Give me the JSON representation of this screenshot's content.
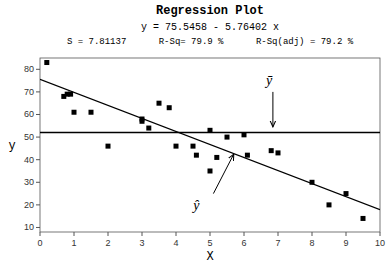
{
  "chart_data": {
    "type": "scatter",
    "title": "Regression Plot",
    "subtitle": [
      "y = 75.5458 - 5.76402 x",
      "S = 7.81137      R-Sq= 79.9 %      R-Sq(adj) = 79.2 %"
    ],
    "xlabel": "X",
    "ylabel": "y",
    "xlim": [
      0,
      10
    ],
    "ylim": [
      8,
      85
    ],
    "xticks": [
      0,
      1,
      2,
      3,
      4,
      5,
      6,
      7,
      8,
      9,
      10
    ],
    "yticks": [
      10,
      20,
      30,
      40,
      50,
      60,
      70,
      80
    ],
    "grid": false,
    "series": [
      {
        "type": "scatter",
        "marker": "square",
        "color": "black",
        "x": [
          0.2,
          0.7,
          0.8,
          0.9,
          1.0,
          1.5,
          2.0,
          3.0,
          3.0,
          3.2,
          3.5,
          3.8,
          4.0,
          4.5,
          4.6,
          5.0,
          5.0,
          5.2,
          5.5,
          6.0,
          6.1,
          6.8,
          7.0,
          8.0,
          8.5,
          9.0,
          9.5
        ],
        "values": [
          83,
          68,
          69,
          69,
          61,
          61,
          46,
          58,
          57,
          54,
          65,
          63,
          46,
          46,
          42,
          35,
          53,
          41,
          50,
          51,
          42,
          44,
          43,
          30,
          20,
          25,
          14
        ]
      },
      {
        "type": "line",
        "color": "black",
        "x": [
          0,
          10
        ],
        "values": [
          75.5458,
          17.9056
        ]
      },
      {
        "type": "hline",
        "color": "black",
        "values": [
          52.0
        ]
      }
    ],
    "annotations": [
      {
        "text": "ȳ",
        "x": 6.65,
        "y": 73,
        "arrow_x": [
          6.85,
          6.85
        ],
        "arrow_y": [
          70,
          54.5
        ]
      },
      {
        "text": "ŷ",
        "x": 4.6,
        "y": 22,
        "arrow_x": [
          5.1,
          5.7
        ],
        "arrow_y": [
          25,
          42.5
        ]
      }
    ]
  }
}
